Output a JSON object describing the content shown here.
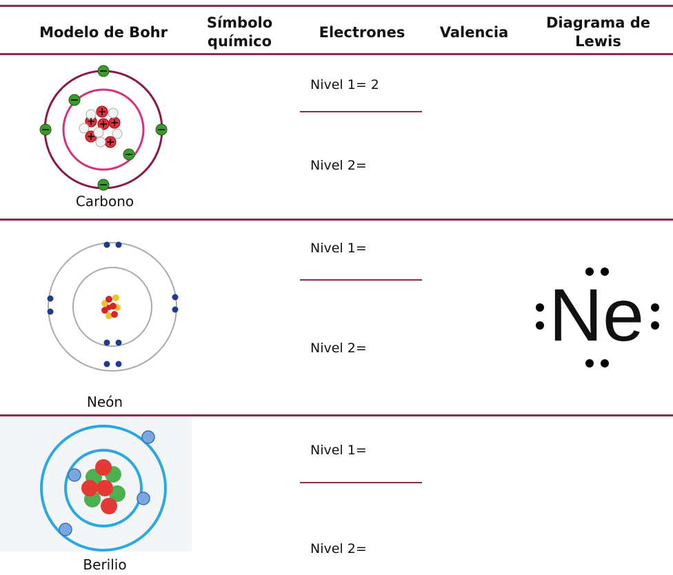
{
  "header": {
    "columns": [
      "Modelo de Bohr",
      "Símbolo químico",
      "Electrones",
      "Valencia",
      "Diagrama de Lewis"
    ]
  },
  "rows": [
    {
      "element": "Carbono",
      "electrons": [
        "Nivel 1= 2",
        "Nivel 2="
      ]
    },
    {
      "element": "Neón",
      "electrons": [
        "Nivel 1=",
        "Nivel 2="
      ],
      "lewis": "Ne"
    },
    {
      "element": "Berilio",
      "electrons": [
        "Nivel 1=",
        "Nivel 2="
      ]
    }
  ]
}
